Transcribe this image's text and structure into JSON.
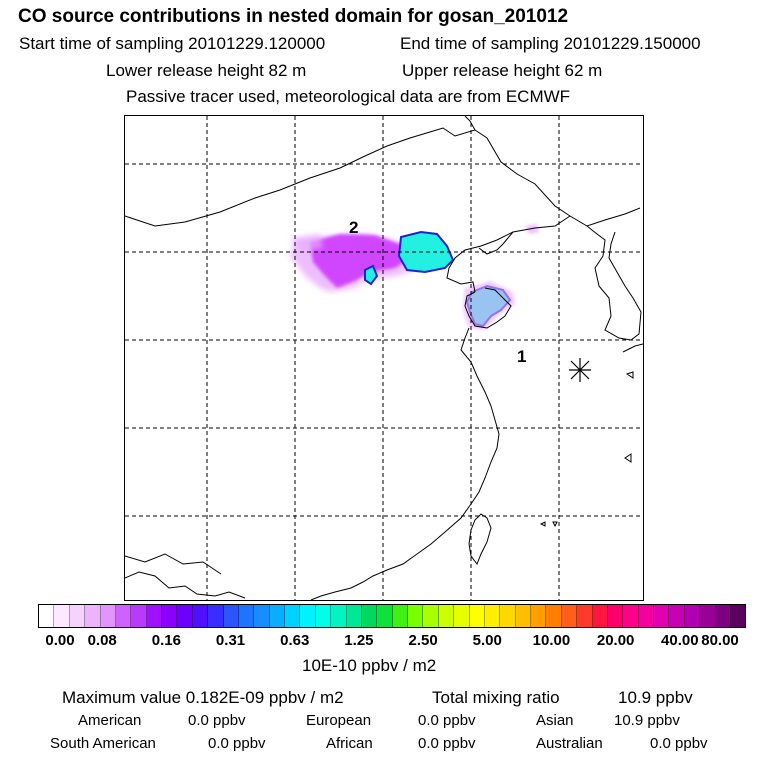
{
  "header": {
    "title": "CO  source contributions in nested domain for gosan_201012",
    "start_time": "Start time of sampling 20101229.120000",
    "end_time": "End time of sampling 20101229.150000",
    "lower_height": "Lower release height   82 m",
    "upper_height": "Upper release height   62 m",
    "tracer_note": "Passive tracer used, meteorological data are from ECMWF"
  },
  "map": {
    "label_1": "1",
    "label_2": "2",
    "colors": {
      "plume_magenta": "#cc33ff",
      "plume_light": "#e8a8ff",
      "plume_cyan": "#22f0e0",
      "plume_outline": "#2222cc"
    }
  },
  "colorbar": {
    "swatches": [
      "#ffffff",
      "#fce9ff",
      "#f6d2ff",
      "#ecb4ff",
      "#e294ff",
      "#cf62ff",
      "#b83aff",
      "#a010ff",
      "#8c00ff",
      "#6f00ff",
      "#4f10ff",
      "#3a2dff",
      "#2a55ff",
      "#1f74ff",
      "#168eff",
      "#0aaeff",
      "#00d2ff",
      "#00f2ff",
      "#00ffe8",
      "#00f5c0",
      "#00e896",
      "#00d85e",
      "#10e03a",
      "#3ff010",
      "#7aff00",
      "#a8ff00",
      "#ccff00",
      "#e8ff00",
      "#ffff00",
      "#ffee00",
      "#ffd800",
      "#ffbe00",
      "#ffa000",
      "#ff8000",
      "#ff5f1a",
      "#ff3a2a",
      "#ff1640",
      "#ff006a",
      "#ff008c",
      "#f500a0",
      "#e000b0",
      "#c800b4",
      "#b000b0",
      "#980098",
      "#7c0080",
      "#5c0060"
    ],
    "tick_labels": [
      "0.00",
      "0.08",
      "0.16",
      "0.31",
      "0.63",
      "1.25",
      "2.50",
      "5.00",
      "10.00",
      "20.00",
      "40.00",
      "80.00"
    ],
    "units": "10E-10 ppbv / m2"
  },
  "summary": {
    "max_value": "Maximum value  0.182E-09 ppbv / m2",
    "total_mixing": "Total mixing ratio",
    "total_mixing_value": "10.9 ppbv",
    "american_label": "American",
    "american_value": "0.0 ppbv",
    "european_label": "European",
    "european_value": "0.0 ppbv",
    "asian_label": "Asian",
    "asian_value": "10.9 ppbv",
    "south_american_label": "South American",
    "south_american_value": "0.0 ppbv",
    "african_label": "African",
    "african_value": "0.0 ppbv",
    "australian_label": "Australian",
    "australian_value": "0.0 ppbv"
  }
}
